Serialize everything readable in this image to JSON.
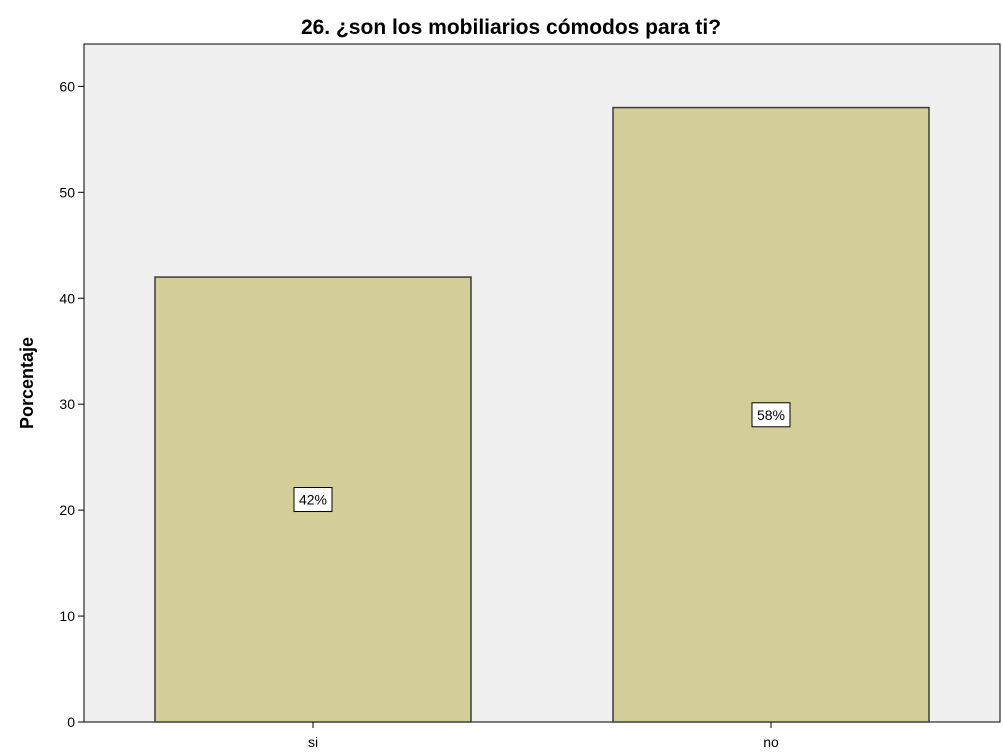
{
  "chart_data": {
    "type": "bar",
    "title": "26. ¿son los mobiliarios cómodos para ti?",
    "xlabel": "",
    "ylabel": "Porcentaje",
    "categories": [
      "si",
      "no"
    ],
    "values": [
      42,
      58
    ],
    "data_labels": [
      "42%",
      "58%"
    ],
    "ylim": [
      0,
      64
    ],
    "yticks": [
      0,
      10,
      20,
      30,
      40,
      50,
      60
    ],
    "grid": false,
    "legend": "none",
    "colors": {
      "plot_background": "#f0f0f0",
      "bar_fill": "#d3ce97",
      "bar_stroke": "#3c3c3c"
    }
  }
}
